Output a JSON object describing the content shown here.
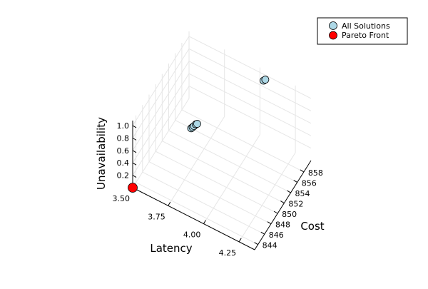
{
  "chart_data": {
    "type": "scatter",
    "series": [
      {
        "name": "All Solutions",
        "color": "#add8e6",
        "points": [
          {
            "latency": 3.5,
            "cost": 843.0,
            "unavailability": 0.0
          },
          {
            "latency": 3.7,
            "cost": 852.2,
            "unavailability": 0.42
          },
          {
            "latency": 3.71,
            "cost": 852.2,
            "unavailability": 0.45
          },
          {
            "latency": 3.72,
            "cost": 852.2,
            "unavailability": 0.48
          },
          {
            "latency": 3.73,
            "cost": 852.3,
            "unavailability": 0.51
          },
          {
            "latency": 3.74,
            "cost": 852.3,
            "unavailability": 0.53
          },
          {
            "latency": 4.03,
            "cost": 860.0,
            "unavailability": 0.92
          },
          {
            "latency": 4.04,
            "cost": 860.1,
            "unavailability": 0.94
          }
        ]
      },
      {
        "name": "Pareto Front",
        "color": "#ff0000",
        "points": [
          {
            "latency": 3.5,
            "cost": 843.0,
            "unavailability": 0.0
          }
        ]
      }
    ],
    "axes": {
      "x": {
        "label": "Latency",
        "ticks": [
          "3.50",
          "3.75",
          "4.00",
          "4.25"
        ]
      },
      "y": {
        "label": "Cost",
        "ticks": [
          "844",
          "846",
          "848",
          "850",
          "852",
          "854",
          "856",
          "858"
        ]
      },
      "z": {
        "label": "Unavailability",
        "ticks": [
          "0.2",
          "0.4",
          "0.6",
          "0.8",
          "1.0"
        ]
      }
    },
    "grid": true,
    "legend_position": "top-right"
  }
}
